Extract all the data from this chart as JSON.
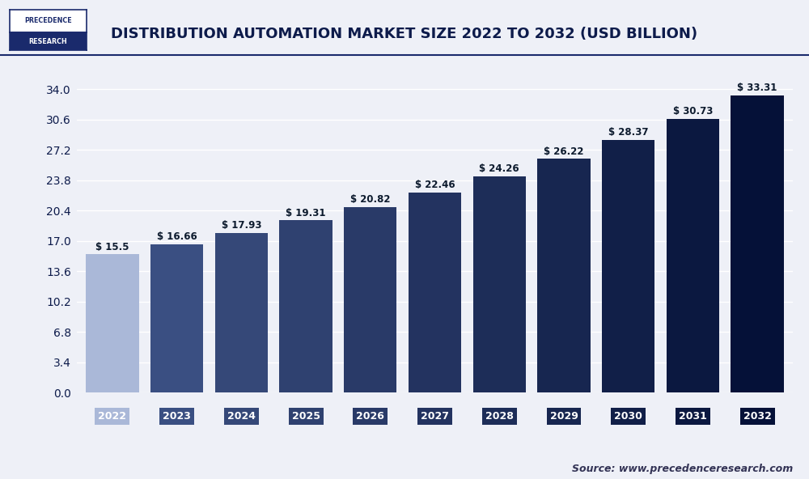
{
  "categories": [
    "2022",
    "2023",
    "2024",
    "2025",
    "2026",
    "2027",
    "2028",
    "2029",
    "2030",
    "2031",
    "2032"
  ],
  "values": [
    15.5,
    16.66,
    17.93,
    19.31,
    20.82,
    22.46,
    24.26,
    26.22,
    28.37,
    30.73,
    33.31
  ],
  "labels": [
    "$ 15.5",
    "$ 16.66",
    "$ 17.93",
    "$ 19.31",
    "$ 20.82",
    "$ 22.46",
    "$ 24.26",
    "$ 26.22",
    "$ 28.37",
    "$ 30.73",
    "$ 33.31"
  ],
  "bar_colors": [
    "#aab8d8",
    "#3a4f82",
    "#354878",
    "#2f4170",
    "#293a68",
    "#233360",
    "#1d2d58",
    "#172650",
    "#111f48",
    "#0b1840",
    "#051138"
  ],
  "yticks": [
    0,
    3.4,
    6.8,
    10.2,
    13.6,
    17,
    20.4,
    23.8,
    27.2,
    30.6,
    34
  ],
  "ylim": [
    0,
    36.5
  ],
  "title": "DISTRIBUTION AUTOMATION MARKET SIZE 2022 TO 2032 (USD BILLION)",
  "background_color": "#eef0f7",
  "plot_bg_color": "#eef0f7",
  "grid_color": "#ffffff",
  "title_color": "#0d1b4b",
  "tick_label_color": "#0d1b4b",
  "bar_label_color": "#0d1b2e",
  "source_text": "Source: www.precedenceresearch.com",
  "logo_top_text": "PRECEDENCE",
  "logo_bottom_text": "RESEARCH",
  "logo_top_color": "#ffffff",
  "logo_bottom_color": "#ffffff",
  "logo_top_bg": "#ffffff",
  "logo_bottom_bg": "#1a2a6c",
  "logo_border_color": "#1a2a6c",
  "separator_color": "#1a2a6c",
  "bar_width": 0.82
}
